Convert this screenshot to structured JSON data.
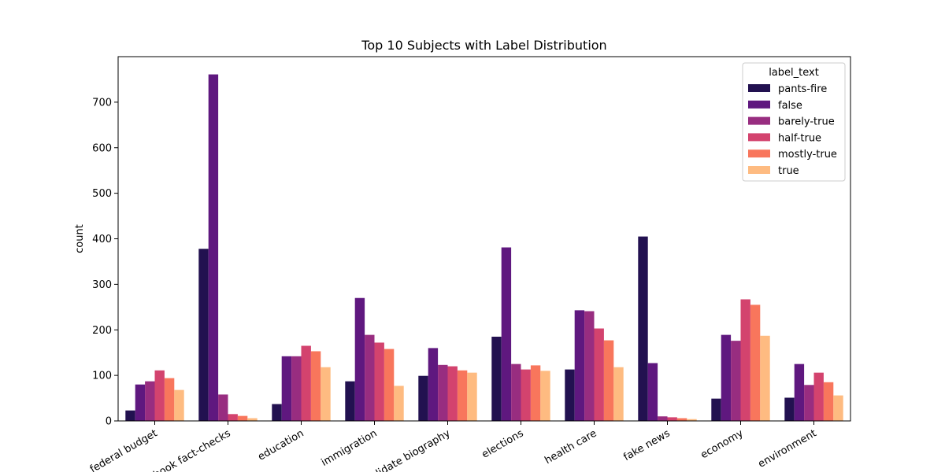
{
  "chart_data": {
    "type": "bar",
    "title": "Top 10 Subjects with Label Distribution",
    "xlabel": "",
    "ylabel": "count",
    "ylim": [
      0,
      800
    ],
    "yticks": [
      0,
      100,
      200,
      300,
      400,
      500,
      600,
      700
    ],
    "categories": [
      "federal budget",
      "facebook fact-checks",
      "education",
      "immigration",
      "candidate biography",
      "elections",
      "health care",
      "fake news",
      "economy",
      "environment"
    ],
    "legend": {
      "title": "label_text",
      "position": "top-right"
    },
    "series": [
      {
        "name": "pants-fire",
        "color": "#221150",
        "values": [
          23,
          378,
          37,
          87,
          99,
          185,
          113,
          405,
          49,
          51
        ]
      },
      {
        "name": "false",
        "color": "#5f187f",
        "values": [
          80,
          761,
          142,
          270,
          160,
          381,
          243,
          127,
          189,
          125
        ]
      },
      {
        "name": "barely-true",
        "color": "#982d80",
        "values": [
          87,
          58,
          142,
          189,
          123,
          125,
          241,
          10,
          176,
          79
        ]
      },
      {
        "name": "half-true",
        "color": "#d3436e",
        "values": [
          111,
          15,
          165,
          172,
          120,
          113,
          203,
          8,
          267,
          106
        ]
      },
      {
        "name": "mostly-true",
        "color": "#f8765c",
        "values": [
          94,
          11,
          153,
          158,
          111,
          122,
          177,
          6,
          255,
          85
        ]
      },
      {
        "name": "true",
        "color": "#febb81",
        "values": [
          68,
          6,
          118,
          77,
          106,
          110,
          118,
          4,
          187,
          56
        ]
      }
    ]
  }
}
